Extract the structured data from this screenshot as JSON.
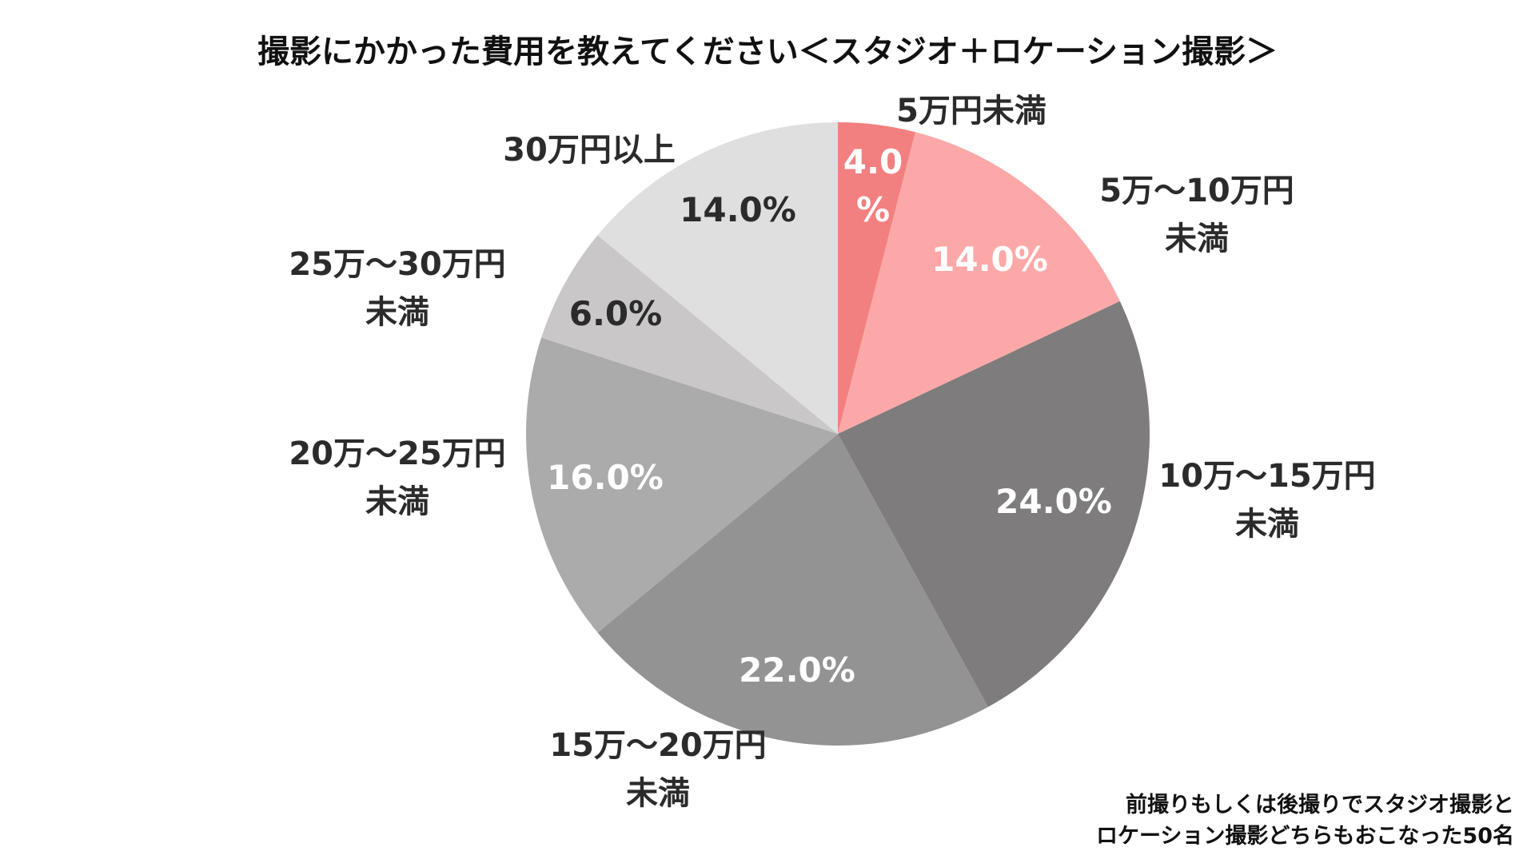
{
  "chart_data": {
    "type": "pie",
    "title": "撮影にかかった費用を教えてください＜スタジオ＋ロケーション撮影＞",
    "slices": [
      {
        "category": [
          "5万円未満"
        ],
        "value": 4.0,
        "value_label": [
          "4.0",
          "%"
        ],
        "color": "#f28080",
        "label_color": "#ffffff"
      },
      {
        "category": [
          "5万～10万円",
          "未満"
        ],
        "value": 14.0,
        "value_label": [
          "14.0%"
        ],
        "color": "#fda8a8",
        "label_color": "#ffffff"
      },
      {
        "category": [
          "10万～15万円",
          "未満"
        ],
        "value": 24.0,
        "value_label": [
          "24.0%"
        ],
        "color": "#7e7c7d",
        "label_color": "#ffffff"
      },
      {
        "category": [
          "15万～20万円",
          "未満"
        ],
        "value": 22.0,
        "value_label": [
          "22.0%"
        ],
        "color": "#939393",
        "label_color": "#ffffff"
      },
      {
        "category": [
          "20万～25万円",
          "未満"
        ],
        "value": 16.0,
        "value_label": [
          "16.0%"
        ],
        "color": "#ababab",
        "label_color": "#ffffff"
      },
      {
        "category": [
          "25万～30万円",
          "未満"
        ],
        "value": 6.0,
        "value_label": [
          "6.0%"
        ],
        "color": "#c9c7c8",
        "label_color": "#2b2b2b"
      },
      {
        "category": [
          "30万円以上"
        ],
        "value": 14.0,
        "value_label": [
          "14.0%"
        ],
        "color": "#dfdfe0",
        "label_color": "#2b2b2b"
      }
    ],
    "start_angle": "12 o'clock",
    "direction": "clockwise",
    "legend": "none"
  },
  "note": {
    "line1": "前撮りもしくは後撮りでスタジオ撮影と",
    "line2": "ロケーション撮影どちらもおこなった50名"
  }
}
